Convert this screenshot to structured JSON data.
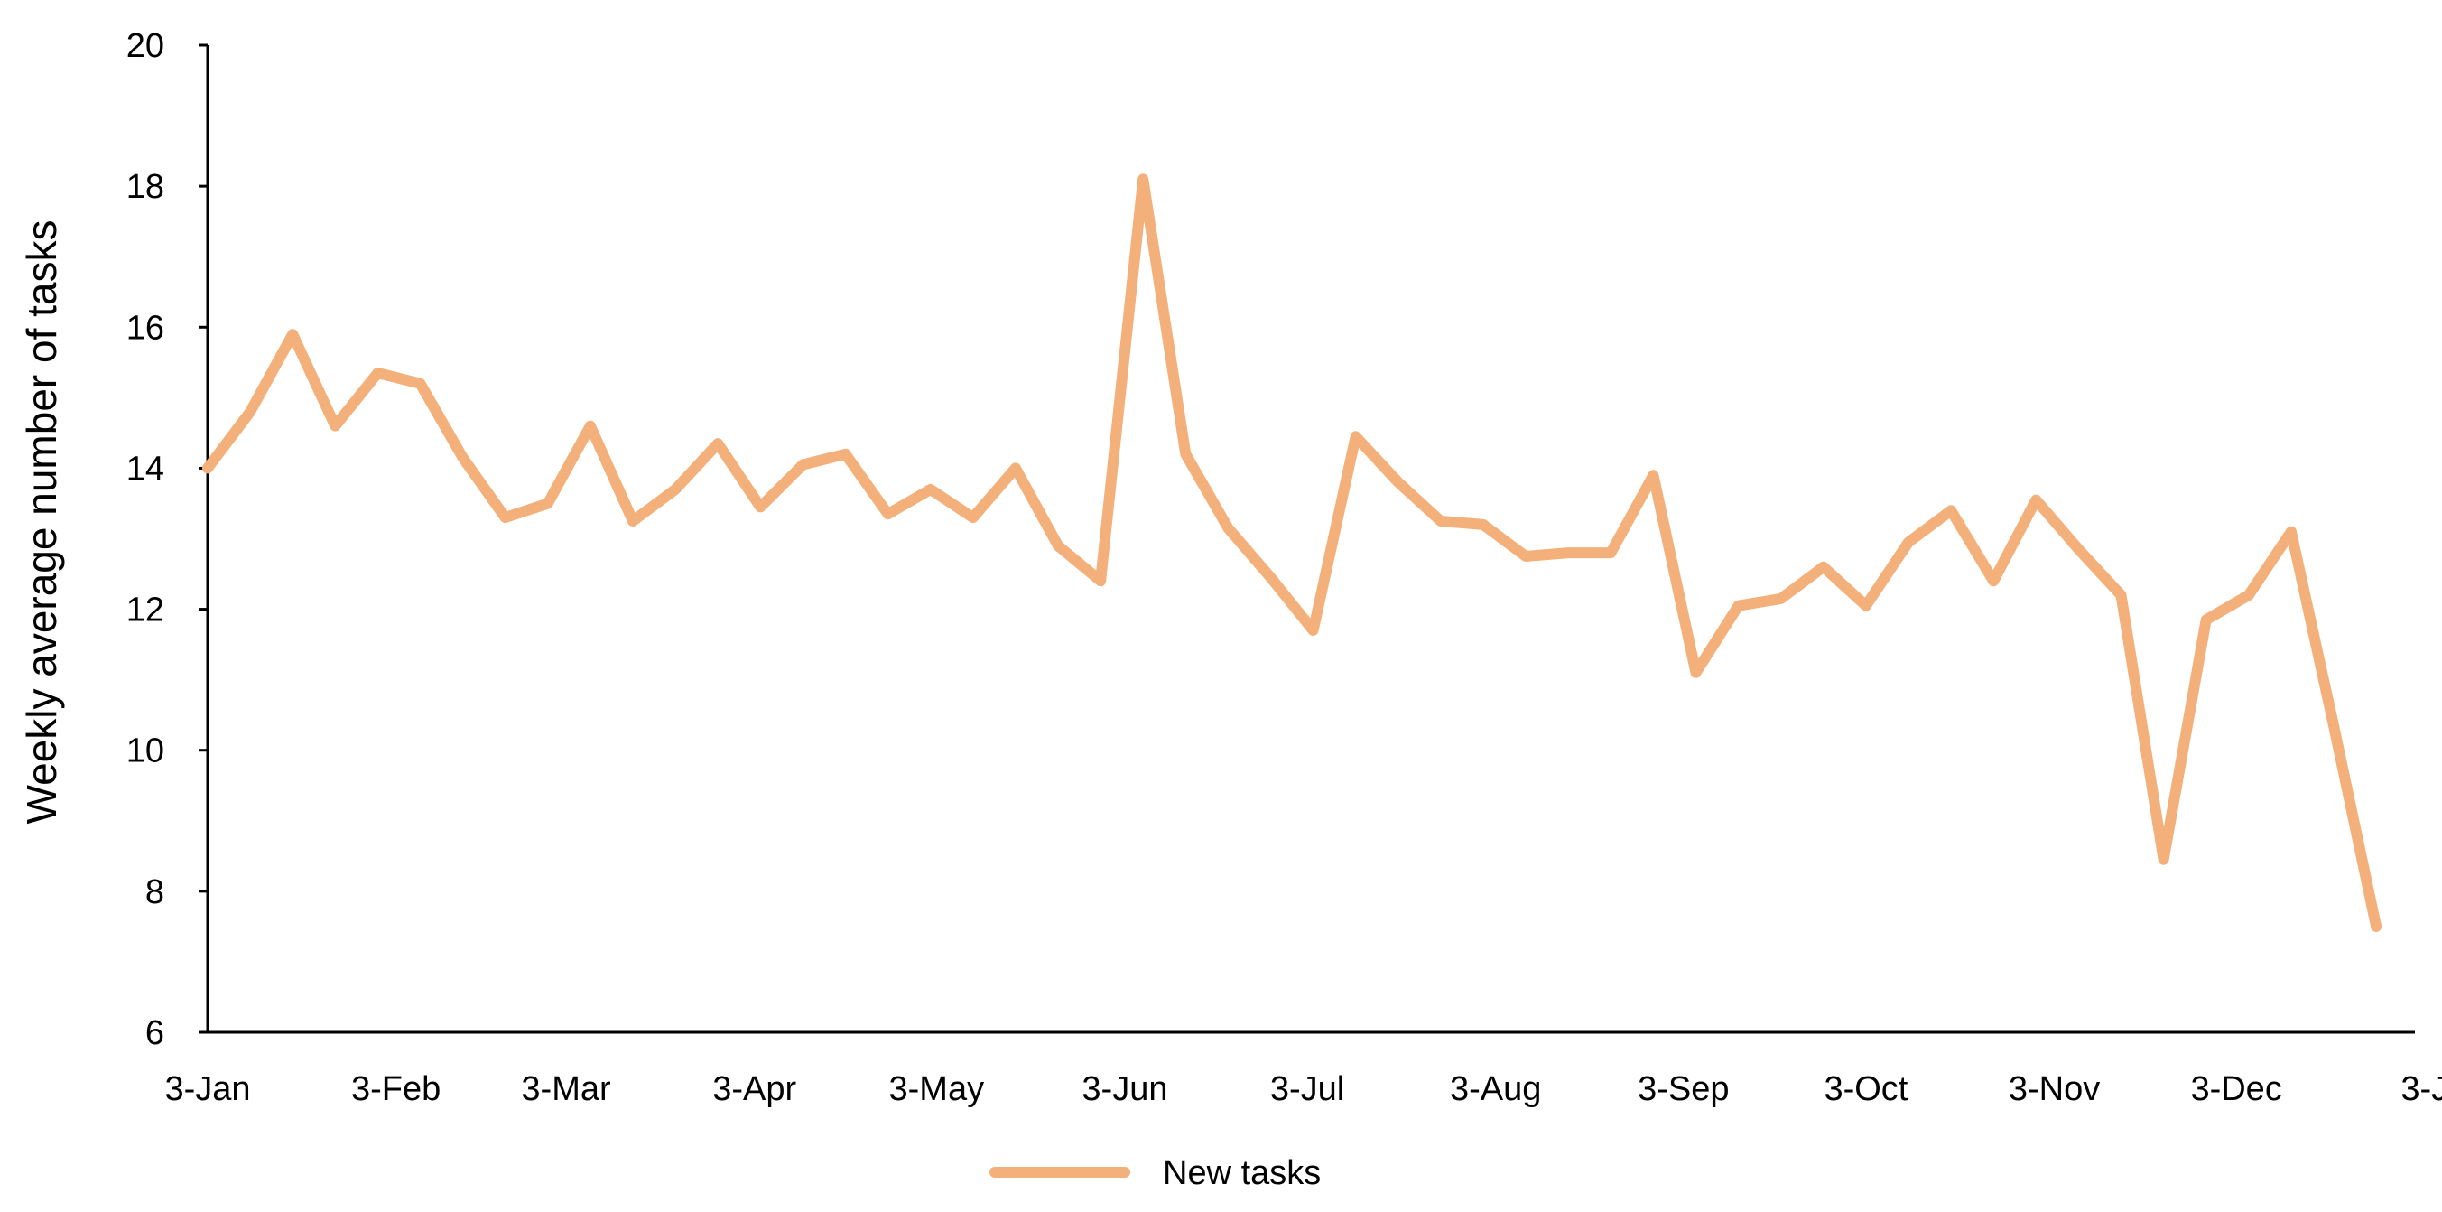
{
  "chart_data": {
    "type": "line",
    "ylabel": "Weekly average number of tasks",
    "xlabel": "",
    "title": "",
    "ylim": [
      6,
      20
    ],
    "y_ticks": [
      6,
      8,
      10,
      12,
      14,
      16,
      18,
      20
    ],
    "x_ticks": [
      {
        "label": "3-Jan",
        "index": 0
      },
      {
        "label": "3-Feb",
        "index": 4.43
      },
      {
        "label": "3-Mar",
        "index": 8.43
      },
      {
        "label": "3-Apr",
        "index": 12.86
      },
      {
        "label": "3-May",
        "index": 17.14
      },
      {
        "label": "3-Jun",
        "index": 21.57
      },
      {
        "label": "3-Jul",
        "index": 25.86
      },
      {
        "label": "3-Aug",
        "index": 30.29
      },
      {
        "label": "3-Sep",
        "index": 34.71
      },
      {
        "label": "3-Oct",
        "index": 39.0
      },
      {
        "label": "3-Nov",
        "index": 43.43
      },
      {
        "label": "3-Dec",
        "index": 47.71
      },
      {
        "label": "3-J",
        "index": 52.14
      }
    ],
    "x_range": [
      0,
      52.14
    ],
    "grid": false,
    "legend_position": "bottom-center",
    "series": [
      {
        "name": "New tasks",
        "color": "#f4b07a",
        "values": [
          14.0,
          14.8,
          15.9,
          14.6,
          15.35,
          15.2,
          14.15,
          13.3,
          13.5,
          14.6,
          13.25,
          13.7,
          14.35,
          13.45,
          14.05,
          14.2,
          13.35,
          13.7,
          13.3,
          14.0,
          12.9,
          12.4,
          18.1,
          14.2,
          13.15,
          12.45,
          11.7,
          14.45,
          13.8,
          13.25,
          13.2,
          12.75,
          12.8,
          12.8,
          13.9,
          11.1,
          12.05,
          12.15,
          12.6,
          12.05,
          12.95,
          13.4,
          12.4,
          13.55,
          12.85,
          12.2,
          8.45,
          11.85,
          12.2,
          13.1,
          10.35,
          7.5
        ]
      }
    ]
  }
}
